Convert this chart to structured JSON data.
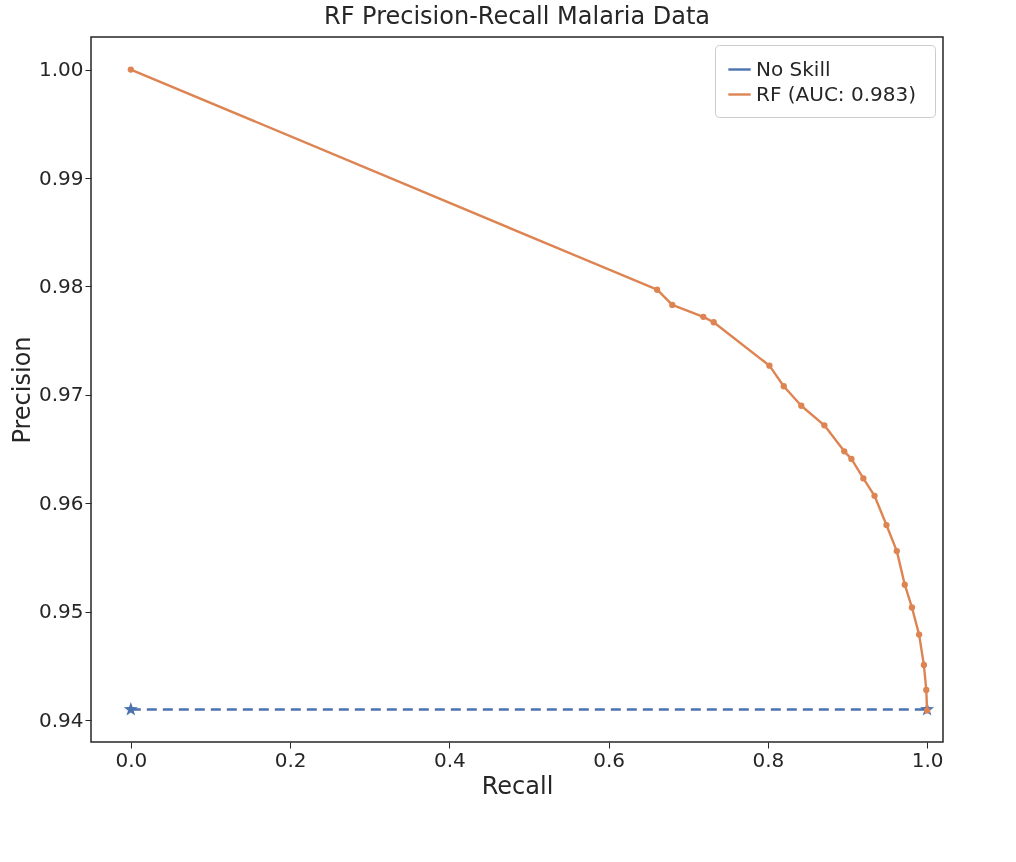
{
  "chart_data": {
    "type": "line",
    "title": "RF Precision-Recall Malaria Data",
    "xlabel": "Recall",
    "ylabel": "Precision",
    "xlim": [
      -0.05,
      1.02
    ],
    "ylim": [
      0.938,
      1.003
    ],
    "xticks": [
      {
        "value": 0,
        "label": "0.0"
      },
      {
        "value": 0.2,
        "label": "0.2"
      },
      {
        "value": 0.4,
        "label": "0.4"
      },
      {
        "value": 0.6,
        "label": "0.6"
      },
      {
        "value": 0.8,
        "label": "0.8"
      },
      {
        "value": 1,
        "label": "1.0"
      }
    ],
    "yticks": [
      0.94,
      0.95,
      0.96,
      0.97,
      0.98,
      0.99,
      {
        "value": 1,
        "label": "1.00"
      }
    ],
    "grid": false,
    "legend": "top right",
    "series": [
      {
        "name": "No Skill",
        "color": "#4c72b0",
        "marker": "star",
        "line_style": "dashed",
        "x": [
          0,
          1
        ],
        "values": [
          0.941,
          0.941
        ]
      },
      {
        "name": "RF  (AUC: 0.983)",
        "color": "#dd8452",
        "marker": "circle",
        "line_style": "solid",
        "x": [
          0,
          0.661,
          0.68,
          0.719,
          0.732,
          0.802,
          0.82,
          0.842,
          0.871,
          0.896,
          0.905,
          0.92,
          0.934,
          0.949,
          0.962,
          0.972,
          0.981,
          0.99,
          0.996,
          0.999,
          1.0
        ],
        "values": [
          1.0,
          0.9797,
          0.9783,
          0.9772,
          0.9767,
          0.9727,
          0.9708,
          0.969,
          0.9672,
          0.9648,
          0.9641,
          0.9623,
          0.9607,
          0.958,
          0.9556,
          0.9525,
          0.9504,
          0.9479,
          0.9451,
          0.9428,
          0.9409
        ]
      }
    ]
  }
}
